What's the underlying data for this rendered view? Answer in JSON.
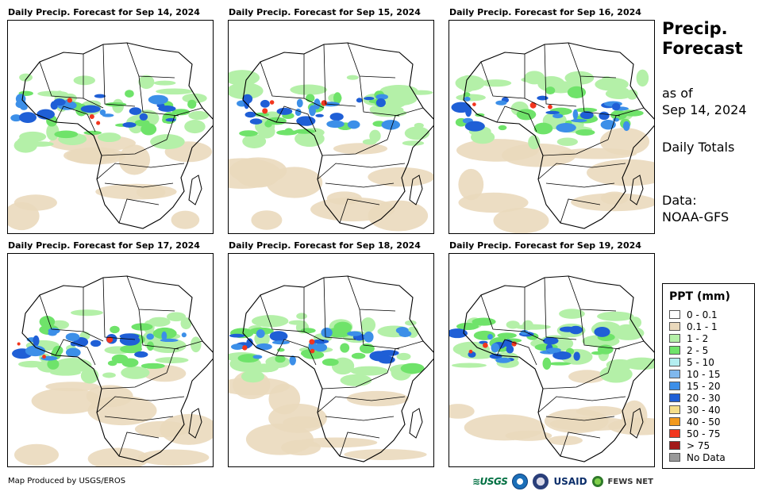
{
  "panels": [
    {
      "title": "Daily Precip. Forecast for Sep 14, 2024",
      "day": "Sep 14, 2024"
    },
    {
      "title": "Daily Precip. Forecast for Sep 15, 2024",
      "day": "Sep 15, 2024"
    },
    {
      "title": "Daily Precip. Forecast for Sep 16, 2024",
      "day": "Sep 16, 2024"
    },
    {
      "title": "Daily Precip. Forecast for Sep 17, 2024",
      "day": "Sep 17, 2024"
    },
    {
      "title": "Daily Precip. Forecast for Sep 18, 2024",
      "day": "Sep 18, 2024"
    },
    {
      "title": "Daily Precip. Forecast for Sep 19, 2024",
      "day": "Sep 19, 2024"
    }
  ],
  "side": {
    "title_line1": "Precip.",
    "title_line2": "Forecast",
    "as_of_line1": "as of",
    "as_of_line2": "Sep 14, 2024",
    "totals": "Daily Totals",
    "data_line1": "Data:",
    "data_line2": "NOAA-GFS"
  },
  "legend": {
    "title": "PPT (mm)",
    "items": [
      {
        "label": "0 - 0.1",
        "color": "#ffffff"
      },
      {
        "label": "0.1 - 1",
        "color": "#ead9bc"
      },
      {
        "label": "1 - 2",
        "color": "#b4f0a8"
      },
      {
        "label": "2 - 5",
        "color": "#6fe36a"
      },
      {
        "label": "5 - 10",
        "color": "#b3eef0"
      },
      {
        "label": "10 - 15",
        "color": "#7fb8ee"
      },
      {
        "label": "15 - 20",
        "color": "#3c8fe8"
      },
      {
        "label": "20 - 30",
        "color": "#1f5fd6"
      },
      {
        "label": "30 - 40",
        "color": "#f5de8a"
      },
      {
        "label": "40 - 50",
        "color": "#f39a1e"
      },
      {
        "label": "50 - 75",
        "color": "#f2361e"
      },
      {
        "label": "> 75",
        "color": "#a21a1a"
      },
      {
        "label": "No Data",
        "color": "#9a9a9a"
      }
    ]
  },
  "footer": {
    "credit": "Map Produced by USGS/EROS"
  },
  "logos": {
    "usgs": "≋USGS",
    "usaid": "USAID",
    "fews": "FEWS NET"
  },
  "colors": {
    "light_beige": "#ead9bc",
    "light_green": "#b4f0a8",
    "green": "#6fe36a",
    "blue": "#3c8fe8",
    "dark_blue": "#1f5fd6",
    "red": "#f2361e"
  }
}
